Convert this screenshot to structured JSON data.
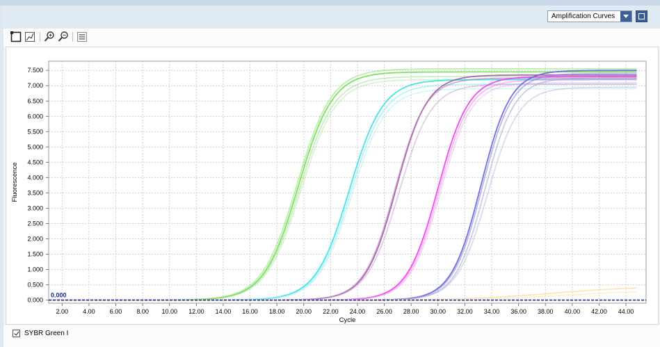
{
  "header": {
    "view_select": {
      "value": "Amplification Curves",
      "options": [
        "Amplification Curves"
      ]
    }
  },
  "toolbar": {
    "icons": [
      "select-mode-icon",
      "chart-type-icon",
      "zoom-in-icon",
      "zoom-out-icon",
      "legend-icon"
    ]
  },
  "chart_data": {
    "type": "line",
    "title": "",
    "xlabel": "Cycle",
    "ylabel": "Fluorescence",
    "xlim": [
      1,
      45.5
    ],
    "ylim": [
      -0.1,
      7.8
    ],
    "xticks": [
      "2.00",
      "4.00",
      "6.00",
      "8.00",
      "10.00",
      "12.00",
      "14.00",
      "16.00",
      "18.00",
      "20.00",
      "22.00",
      "24.00",
      "26.00",
      "28.00",
      "30.00",
      "32.00",
      "34.00",
      "36.00",
      "38.00",
      "40.00",
      "42.00",
      "44.00"
    ],
    "yticks": [
      "0.000",
      "0.500",
      "1.000",
      "1.500",
      "2.000",
      "2.500",
      "3.000",
      "3.500",
      "4.000",
      "4.500",
      "5.000",
      "5.500",
      "6.000",
      "6.500",
      "7.000",
      "7.500"
    ],
    "threshold": {
      "value": 0.0,
      "label": "0.000",
      "color": "#1a2a9c"
    },
    "grid": true,
    "curve_model": "4-parameter sigmoid: F = plateau / (1 + exp(-(cycle - midpoint) / slope))",
    "series": [
      {
        "color": "#74e052",
        "opacity": 0.95,
        "plateau": 7.45,
        "midpoint": 19.6,
        "slope": 1.28
      },
      {
        "color": "#86e070",
        "opacity": 0.55,
        "plateau": 7.55,
        "midpoint": 19.5,
        "slope": 1.3
      },
      {
        "color": "#8ad878",
        "opacity": 0.45,
        "plateau": 7.3,
        "midpoint": 19.7,
        "slope": 1.3
      },
      {
        "color": "#9ee48a",
        "opacity": 0.4,
        "plateau": 7.2,
        "midpoint": 19.8,
        "slope": 1.3
      },
      {
        "color": "#3fe0e8",
        "opacity": 0.95,
        "plateau": 7.2,
        "midpoint": 23.4,
        "slope": 1.25
      },
      {
        "color": "#7ae8ee",
        "opacity": 0.5,
        "plateau": 7.05,
        "midpoint": 23.5,
        "slope": 1.25
      },
      {
        "color": "#9bf0f3",
        "opacity": 0.45,
        "plateau": 6.9,
        "midpoint": 23.6,
        "slope": 1.25
      },
      {
        "color": "#a45aa8",
        "opacity": 0.9,
        "plateau": 7.35,
        "midpoint": 26.9,
        "slope": 1.15
      },
      {
        "color": "#b47ab8",
        "opacity": 0.6,
        "plateau": 7.25,
        "midpoint": 26.8,
        "slope": 1.15
      },
      {
        "color": "#c49ccc",
        "opacity": 0.5,
        "plateau": 7.05,
        "midpoint": 27.1,
        "slope": 1.2
      },
      {
        "color": "#ee42ee",
        "opacity": 0.95,
        "plateau": 7.3,
        "midpoint": 30.0,
        "slope": 1.15
      },
      {
        "color": "#f07af0",
        "opacity": 0.5,
        "plateau": 7.2,
        "midpoint": 30.1,
        "slope": 1.15
      },
      {
        "color": "#f4a0f2",
        "opacity": 0.45,
        "plateau": 7.1,
        "midpoint": 30.2,
        "slope": 1.15
      },
      {
        "color": "#6c68d8",
        "opacity": 0.95,
        "plateau": 7.5,
        "midpoint": 33.2,
        "slope": 1.1
      },
      {
        "color": "#8a88e0",
        "opacity": 0.6,
        "plateau": 7.4,
        "midpoint": 33.3,
        "slope": 1.1
      },
      {
        "color": "#9c9ac8",
        "opacity": 0.5,
        "plateau": 7.25,
        "midpoint": 33.5,
        "slope": 1.1
      },
      {
        "color": "#b0acdc",
        "opacity": 0.45,
        "plateau": 6.95,
        "midpoint": 33.7,
        "slope": 1.15
      },
      {
        "color": "#f8dc9e",
        "opacity": 0.7,
        "plateau": 0.45,
        "midpoint": 38.5,
        "slope": 3.2
      },
      {
        "color": "#fbe7b8",
        "opacity": 0.6,
        "plateau": 0.32,
        "midpoint": 39.5,
        "slope": 3.2
      }
    ]
  },
  "footer": {
    "checkbox_label": "SYBR Green I",
    "checked": true
  }
}
